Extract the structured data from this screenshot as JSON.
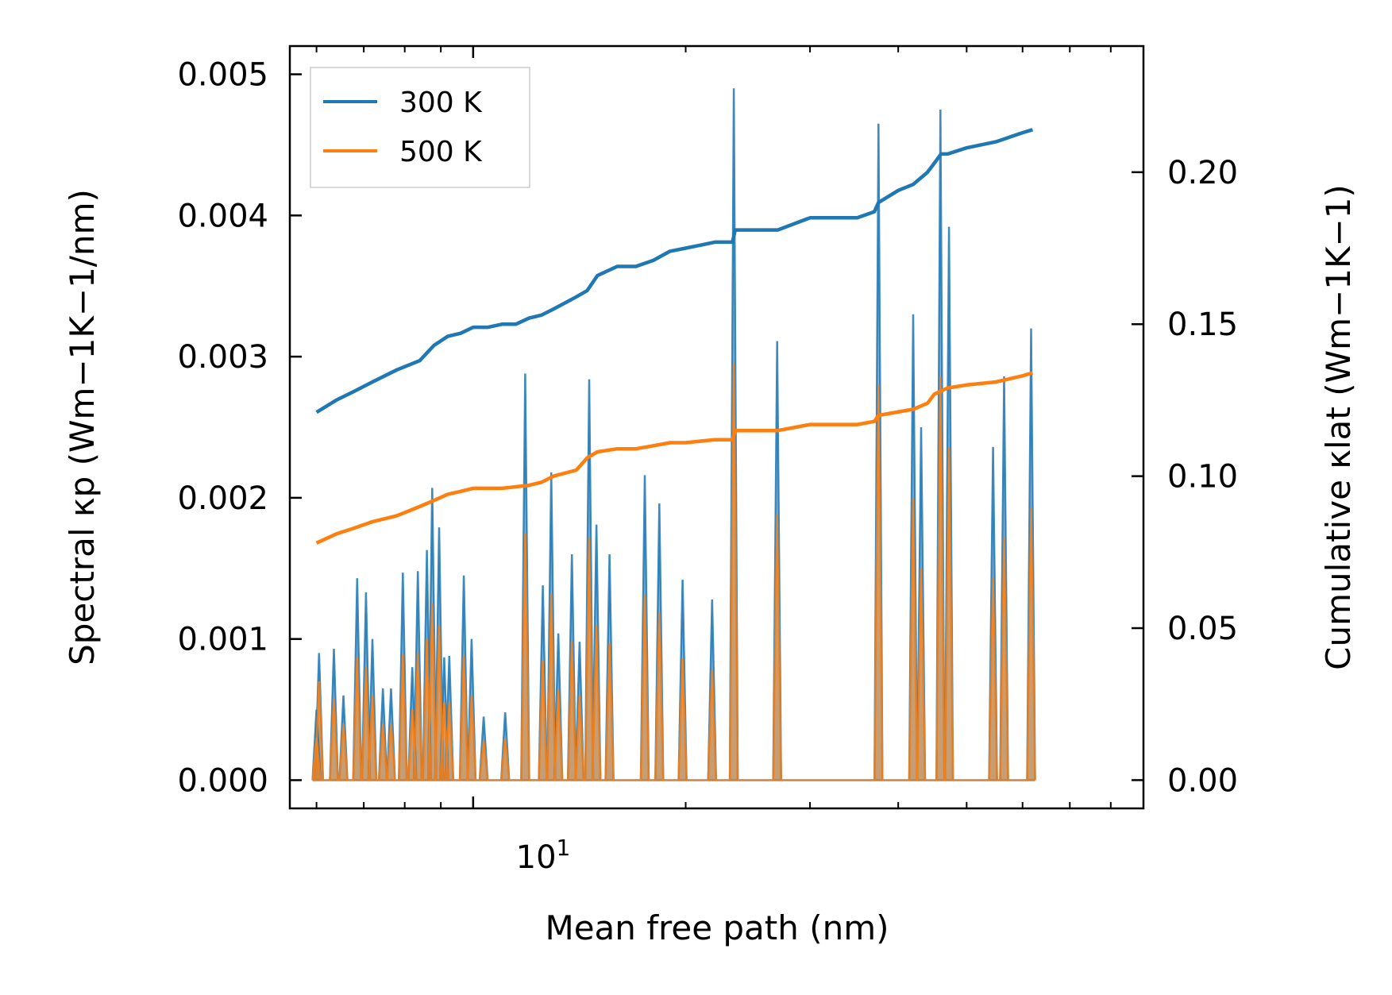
{
  "chart_data": {
    "type": "line",
    "title": "",
    "xlabel": "Mean free path (nm)",
    "ylabel_left": "Spectral κp (Wm−1K−1/nm)",
    "ylabel_right": "Cumulative κlat (Wm−1K−1)",
    "x_scale": "log",
    "xlim": [
      5.5,
      89
    ],
    "x_major_tick": {
      "value": 10,
      "label": "10",
      "exponent": "1"
    },
    "x_minor_ticks": [
      6,
      7,
      8,
      9,
      20,
      30,
      40,
      50,
      60,
      70,
      80
    ],
    "ylim_left": [
      -0.0002,
      0.0052
    ],
    "yticks_left": [
      0.0,
      0.001,
      0.002,
      0.003,
      0.004,
      0.005
    ],
    "ytick_labels_left": [
      "0.000",
      "0.001",
      "0.002",
      "0.003",
      "0.004",
      "0.005"
    ],
    "ylim_right": [
      -0.0093,
      0.2415
    ],
    "yticks_right": [
      0.0,
      0.05,
      0.1,
      0.15,
      0.2
    ],
    "ytick_labels_right": [
      "0.00",
      "0.05",
      "0.10",
      "0.15",
      "0.20"
    ],
    "legend": {
      "placement": "top-left",
      "entries": [
        "300 K",
        "500 K"
      ]
    },
    "colors": {
      "300 K": "#1f77b4",
      "500 K": "#ff7f0e",
      "fill_300": "#1f77b4",
      "fill_500": "#ff7f0e"
    },
    "spectral_peaks": {
      "300 K": [
        {
          "x": 6.0,
          "y": 0.0005
        },
        {
          "x": 6.05,
          "y": 0.0009
        },
        {
          "x": 6.35,
          "y": 0.00093
        },
        {
          "x": 6.55,
          "y": 0.0006
        },
        {
          "x": 6.85,
          "y": 0.00143
        },
        {
          "x": 7.05,
          "y": 0.00133
        },
        {
          "x": 7.2,
          "y": 0.001
        },
        {
          "x": 7.45,
          "y": 0.00065
        },
        {
          "x": 7.65,
          "y": 0.00065
        },
        {
          "x": 7.95,
          "y": 0.00147
        },
        {
          "x": 8.2,
          "y": 0.0008
        },
        {
          "x": 8.35,
          "y": 0.00148
        },
        {
          "x": 8.6,
          "y": 0.00163
        },
        {
          "x": 8.75,
          "y": 0.00207
        },
        {
          "x": 8.95,
          "y": 0.00179
        },
        {
          "x": 9.1,
          "y": 0.00087
        },
        {
          "x": 9.25,
          "y": 0.00088
        },
        {
          "x": 9.7,
          "y": 0.00145
        },
        {
          "x": 9.95,
          "y": 0.001
        },
        {
          "x": 10.35,
          "y": 0.00045
        },
        {
          "x": 11.1,
          "y": 0.00048
        },
        {
          "x": 11.85,
          "y": 0.00288
        },
        {
          "x": 12.55,
          "y": 0.00138
        },
        {
          "x": 12.9,
          "y": 0.00218
        },
        {
          "x": 13.2,
          "y": 0.00104
        },
        {
          "x": 13.8,
          "y": 0.0016
        },
        {
          "x": 14.15,
          "y": 0.00098
        },
        {
          "x": 14.6,
          "y": 0.00284
        },
        {
          "x": 14.95,
          "y": 0.00181
        },
        {
          "x": 15.6,
          "y": 0.0016
        },
        {
          "x": 17.5,
          "y": 0.00216
        },
        {
          "x": 18.35,
          "y": 0.00196
        },
        {
          "x": 19.8,
          "y": 0.00142
        },
        {
          "x": 21.8,
          "y": 0.00128
        },
        {
          "x": 23.4,
          "y": 0.0049
        },
        {
          "x": 26.95,
          "y": 0.00311
        },
        {
          "x": 37.5,
          "y": 0.00465
        },
        {
          "x": 42.0,
          "y": 0.0033
        },
        {
          "x": 43.1,
          "y": 0.0025
        },
        {
          "x": 45.9,
          "y": 0.00475
        },
        {
          "x": 47.2,
          "y": 0.00392
        },
        {
          "x": 54.5,
          "y": 0.00236
        },
        {
          "x": 56.5,
          "y": 0.00286
        },
        {
          "x": 61.7,
          "y": 0.0032
        }
      ],
      "500 K": [
        {
          "x": 6.0,
          "y": 0.0003
        },
        {
          "x": 6.05,
          "y": 0.0007
        },
        {
          "x": 6.35,
          "y": 0.00058
        },
        {
          "x": 6.55,
          "y": 0.0004
        },
        {
          "x": 6.85,
          "y": 0.00087
        },
        {
          "x": 7.05,
          "y": 0.0008
        },
        {
          "x": 7.2,
          "y": 0.0006
        },
        {
          "x": 7.45,
          "y": 0.0004
        },
        {
          "x": 7.65,
          "y": 0.0004
        },
        {
          "x": 7.95,
          "y": 0.00089
        },
        {
          "x": 8.2,
          "y": 0.0005
        },
        {
          "x": 8.35,
          "y": 0.0009
        },
        {
          "x": 8.6,
          "y": 0.001
        },
        {
          "x": 8.75,
          "y": 0.00125
        },
        {
          "x": 8.95,
          "y": 0.0011
        },
        {
          "x": 9.1,
          "y": 0.00055
        },
        {
          "x": 9.25,
          "y": 0.00055
        },
        {
          "x": 9.7,
          "y": 0.00088
        },
        {
          "x": 9.95,
          "y": 0.0006
        },
        {
          "x": 10.35,
          "y": 0.00028
        },
        {
          "x": 11.1,
          "y": 0.0003
        },
        {
          "x": 11.85,
          "y": 0.00175
        },
        {
          "x": 12.55,
          "y": 0.00085
        },
        {
          "x": 12.9,
          "y": 0.00132
        },
        {
          "x": 13.2,
          "y": 0.00064
        },
        {
          "x": 13.8,
          "y": 0.00098
        },
        {
          "x": 14.15,
          "y": 0.0006
        },
        {
          "x": 14.6,
          "y": 0.00172
        },
        {
          "x": 14.95,
          "y": 0.0011
        },
        {
          "x": 15.6,
          "y": 0.00097
        },
        {
          "x": 17.5,
          "y": 0.00131
        },
        {
          "x": 18.35,
          "y": 0.00119
        },
        {
          "x": 19.8,
          "y": 0.00086
        },
        {
          "x": 21.8,
          "y": 0.00078
        },
        {
          "x": 23.4,
          "y": 0.00295
        },
        {
          "x": 26.95,
          "y": 0.00188
        },
        {
          "x": 37.5,
          "y": 0.0028
        },
        {
          "x": 42.0,
          "y": 0.002
        },
        {
          "x": 43.1,
          "y": 0.0015
        },
        {
          "x": 45.9,
          "y": 0.00286
        },
        {
          "x": 47.2,
          "y": 0.00236
        },
        {
          "x": 54.5,
          "y": 0.00143
        },
        {
          "x": 56.5,
          "y": 0.00172
        },
        {
          "x": 61.7,
          "y": 0.00193
        }
      ]
    },
    "cumulative": {
      "300 K": {
        "x": [
          6.0,
          6.4,
          6.8,
          7.2,
          7.8,
          8.4,
          8.8,
          9.2,
          9.6,
          10.0,
          10.5,
          11.0,
          11.5,
          12.0,
          12.5,
          13.0,
          13.5,
          14.0,
          14.5,
          15.0,
          16.0,
          17.0,
          18.0,
          19.0,
          20.0,
          21.0,
          22.0,
          23.3,
          23.5,
          25.0,
          27.0,
          30.0,
          35.0,
          37.0,
          37.5,
          40.0,
          42.0,
          43.0,
          44.0,
          45.0,
          46.0,
          47.0,
          50.0,
          55.0,
          60.0,
          62.0
        ],
        "y": [
          0.121,
          0.125,
          0.128,
          0.131,
          0.135,
          0.138,
          0.143,
          0.146,
          0.147,
          0.149,
          0.149,
          0.15,
          0.15,
          0.152,
          0.153,
          0.155,
          0.157,
          0.159,
          0.161,
          0.166,
          0.169,
          0.169,
          0.171,
          0.174,
          0.175,
          0.176,
          0.177,
          0.177,
          0.181,
          0.181,
          0.181,
          0.185,
          0.185,
          0.187,
          0.19,
          0.194,
          0.196,
          0.198,
          0.2,
          0.203,
          0.206,
          0.206,
          0.208,
          0.21,
          0.213,
          0.214
        ]
      },
      "500 K": {
        "x": [
          6.0,
          6.4,
          6.8,
          7.2,
          7.8,
          8.4,
          8.8,
          9.2,
          9.6,
          10.0,
          11.0,
          12.0,
          12.5,
          13.0,
          14.0,
          14.5,
          15.0,
          16.0,
          17.0,
          18.0,
          19.0,
          20.0,
          22.0,
          23.3,
          23.5,
          25.0,
          27.0,
          30.0,
          35.0,
          37.0,
          37.5,
          42.0,
          44.0,
          45.0,
          46.0,
          47.0,
          50.0,
          55.0,
          60.0,
          62.0
        ],
        "y": [
          0.078,
          0.081,
          0.083,
          0.085,
          0.087,
          0.09,
          0.092,
          0.094,
          0.095,
          0.096,
          0.096,
          0.097,
          0.098,
          0.1,
          0.102,
          0.106,
          0.108,
          0.109,
          0.109,
          0.11,
          0.111,
          0.111,
          0.112,
          0.112,
          0.115,
          0.115,
          0.115,
          0.117,
          0.117,
          0.118,
          0.12,
          0.122,
          0.124,
          0.127,
          0.128,
          0.129,
          0.13,
          0.131,
          0.133,
          0.134
        ]
      }
    }
  }
}
